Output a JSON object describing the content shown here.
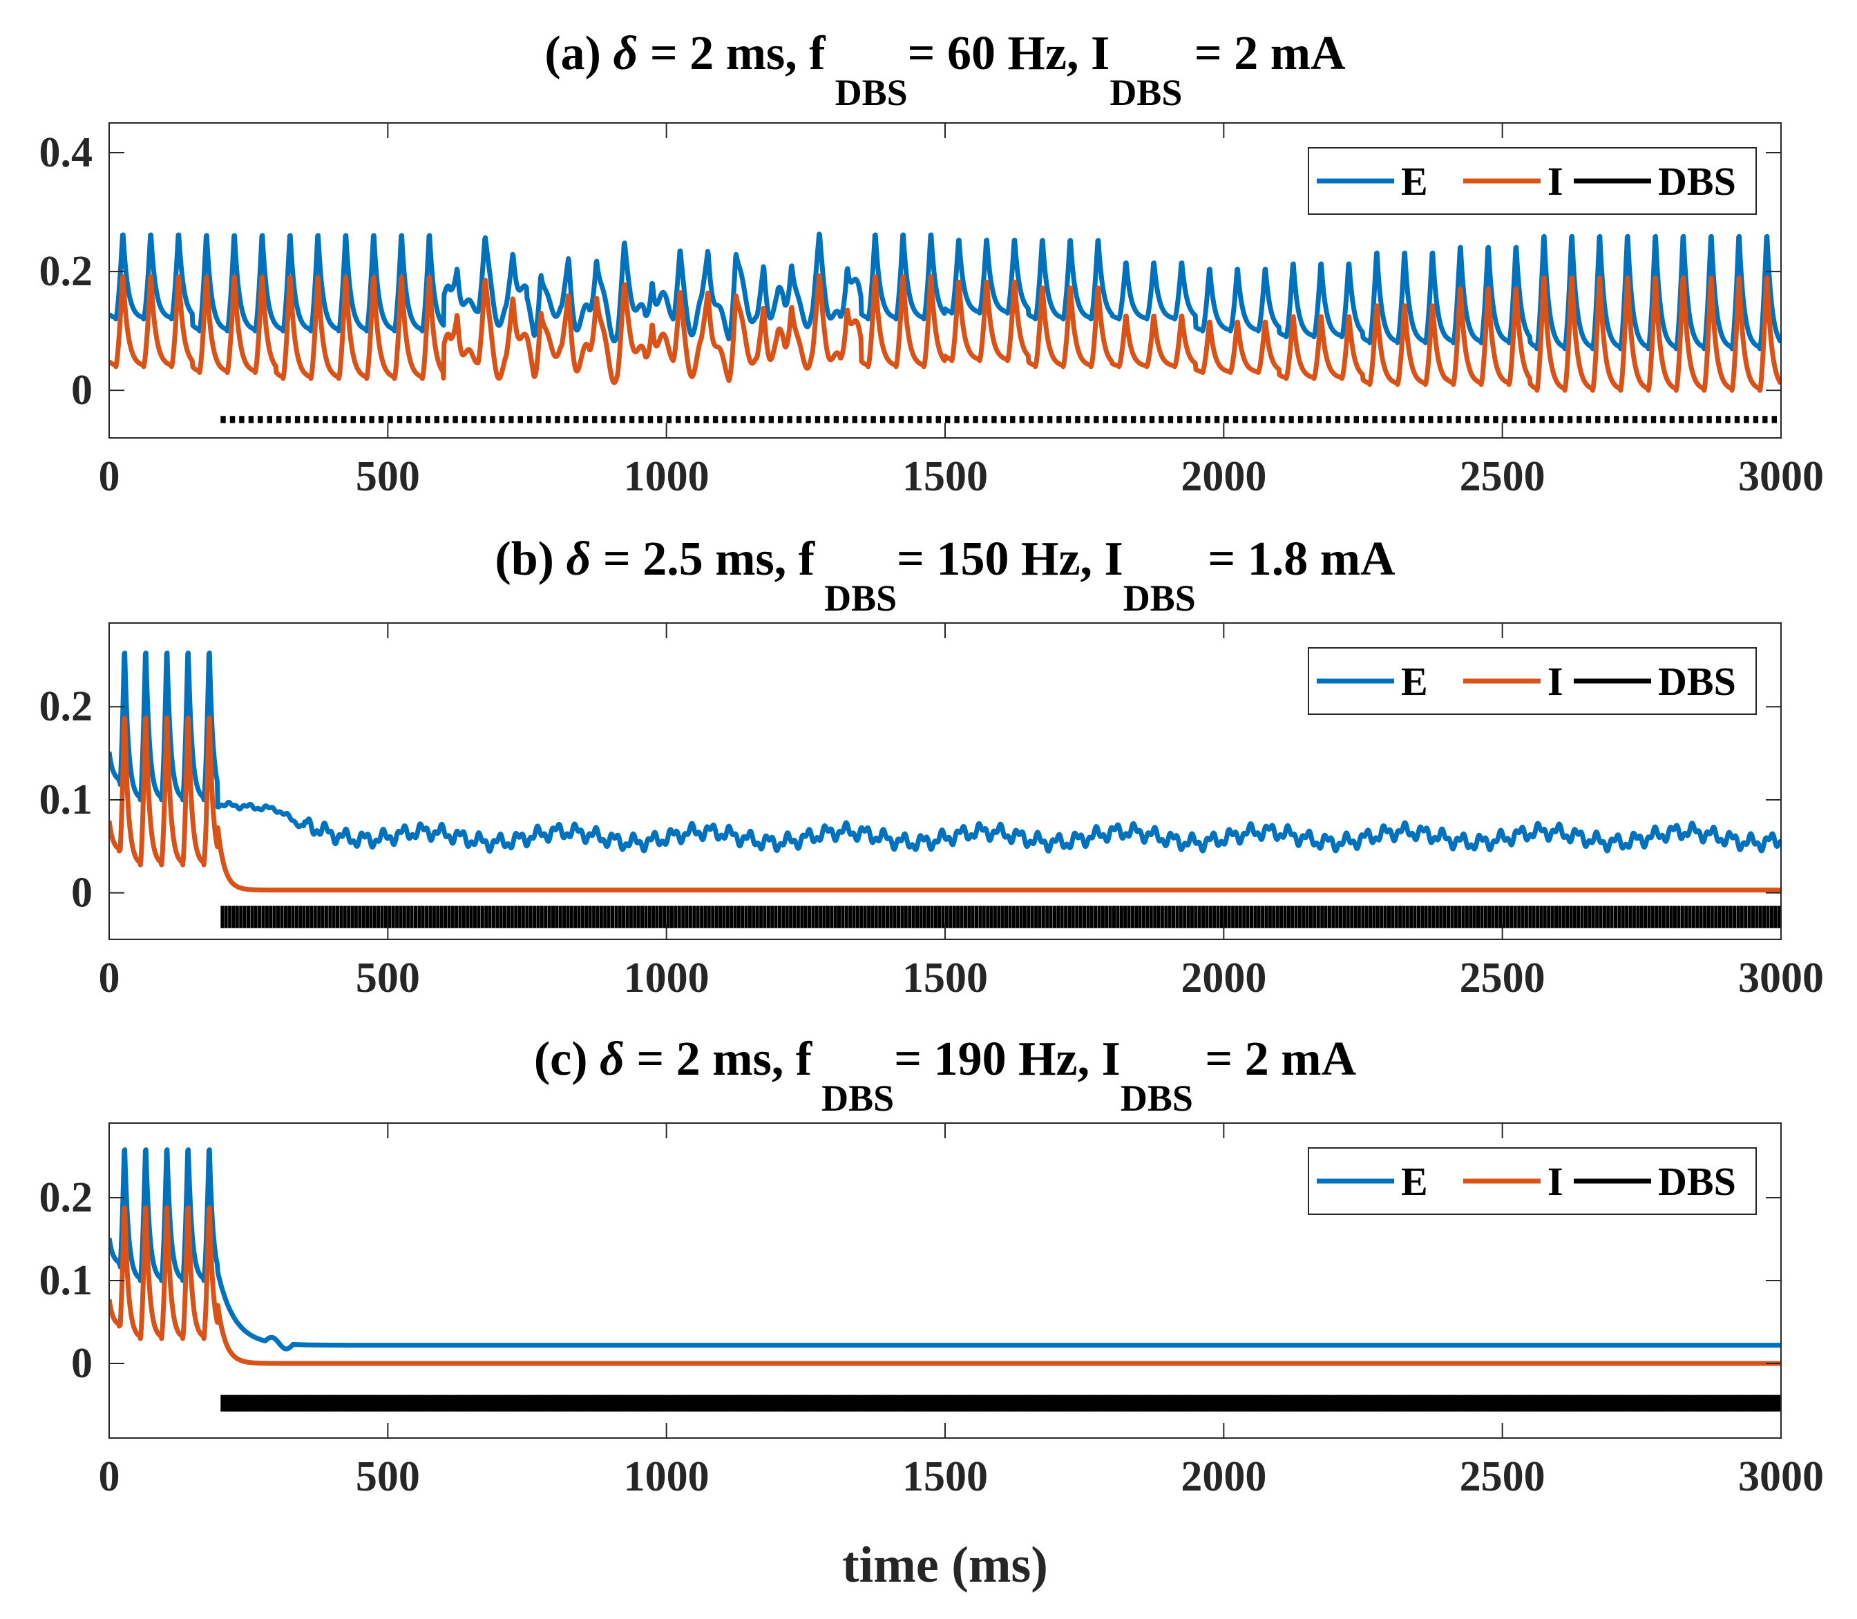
{
  "colors": {
    "E": "#0072BD",
    "I": "#D95319",
    "DBS": "#000000",
    "axis": "#262626"
  },
  "chart_data": [
    {
      "type": "line",
      "panel": "a",
      "title_parts": {
        "prefix": "(a) ",
        "delta": "δ",
        "mid": " = 2 ms, f",
        "f_sub": "DBS",
        "mid2": "= 60 Hz, I",
        "i_sub": "DBS",
        "suffix": " = 2 mA"
      },
      "xlabel": "",
      "ylabel": "",
      "xlim": [
        0,
        3000
      ],
      "ylim": [
        -0.08,
        0.45
      ],
      "xticks": [
        0,
        500,
        1000,
        1500,
        2000,
        2500,
        3000
      ],
      "yticks": [
        0,
        0.2,
        0.4
      ],
      "ytick_labels": [
        "0",
        "0.2",
        "0.4"
      ],
      "legend": [
        "E",
        "I",
        "DBS"
      ],
      "legend_position": "top-right",
      "dbs": {
        "freq_hz": 60,
        "start_ms": 200,
        "end_ms": 3000,
        "base": -0.055,
        "height": 0.012
      },
      "series": [
        {
          "name": "E",
          "description": "oscillates ~0.08-0.28 with period ~50 ms throughout",
          "period_ms": 50,
          "x": [
            0,
            20,
            30,
            45,
            70,
            95,
            120,
            145,
            170,
            200,
            250,
            300,
            400,
            500,
            600,
            700,
            800,
            900,
            1000,
            1100,
            1200,
            1300,
            1400,
            1500,
            1600,
            1700,
            1800,
            1900,
            2000,
            2500,
            3000
          ],
          "peaks": [
            0.27,
            0.27,
            0.27,
            0.27,
            0.27,
            0.26,
            0.27,
            0.27,
            0.27,
            0.27,
            0.26,
            0.26,
            0.22,
            0.21,
            0.22,
            0.24,
            0.25,
            0.27,
            0.27,
            0.27,
            0.27
          ],
          "troughs": [
            0.12,
            0.1,
            0.1,
            0.1,
            0.1,
            0.08,
            0.08,
            0.08,
            0.09,
            0.12,
            0.13,
            0.12,
            0.12,
            0.1,
            0.09,
            0.08,
            0.08,
            0.07,
            0.07,
            0.07,
            0.07
          ]
        },
        {
          "name": "I",
          "description": "oscillates ~0.01-0.20 with period ~50 ms throughout",
          "period_ms": 50,
          "peaks": [
            0.2,
            0.2,
            0.2,
            0.2,
            0.2,
            0.2,
            0.2,
            0.2,
            0.2,
            0.2,
            0.19,
            0.18,
            0.13,
            0.12,
            0.13,
            0.15,
            0.18,
            0.2,
            0.2,
            0.2,
            0.2
          ],
          "troughs": [
            0.04,
            0.03,
            0.02,
            0.02,
            0.01,
            0.01,
            0.01,
            0.01,
            0.02,
            0.04,
            0.05,
            0.04,
            0.04,
            0.03,
            0.02,
            0.01,
            0.01,
            0.0,
            0.0,
            0.0,
            0.0
          ]
        }
      ]
    },
    {
      "type": "line",
      "panel": "b",
      "title_parts": {
        "prefix": "(b) ",
        "delta": "δ",
        "mid": " = 2.5 ms, f",
        "f_sub": "DBS",
        "mid2": "= 150 Hz, I",
        "i_sub": "DBS",
        "suffix": " = 1.8 mA"
      },
      "xlabel": "",
      "ylabel": "",
      "xlim": [
        0,
        3000
      ],
      "ylim": [
        -0.05,
        0.29
      ],
      "xticks": [
        0,
        500,
        1000,
        1500,
        2000,
        2500,
        3000
      ],
      "yticks": [
        0,
        0.1,
        0.2
      ],
      "ytick_labels": [
        "0",
        "0.1",
        "0.2"
      ],
      "legend": [
        "E",
        "I",
        "DBS"
      ],
      "legend_position": "top-right",
      "dbs": {
        "freq_hz": 150,
        "start_ms": 200,
        "end_ms": 3000,
        "base": -0.038,
        "height": 0.024
      },
      "series": [
        {
          "name": "E",
          "description": "oscillation 0.10-0.27 until 200 ms, then ~0.09 decaying to ~0.06 with ripple ±0.01",
          "pre_peaks": [
            0.27,
            0.27,
            0.27,
            0.27,
            0.27
          ],
          "pre_trough": 0.1,
          "post_levels": {
            "200": 0.095,
            "300": 0.09,
            "350": 0.07,
            "500": 0.06,
            "3000": 0.06
          },
          "ripple": 0.012
        },
        {
          "name": "I",
          "description": "oscillation 0.03-0.20 until 200 ms, then near 0",
          "pre_peaks": [
            0.2,
            0.2,
            0.2,
            0.2,
            0.2
          ],
          "pre_trough": 0.03,
          "post_level": 0.003
        }
      ]
    },
    {
      "type": "line",
      "panel": "c",
      "title_parts": {
        "prefix": "(c) ",
        "delta": "δ",
        "mid": " = 2 ms, f",
        "f_sub": "DBS",
        "mid2": "= 190 Hz, I",
        "i_sub": "DBS",
        "suffix": " = 2 mA"
      },
      "xlabel": "time (ms)",
      "ylabel": "",
      "xlim": [
        0,
        3000
      ],
      "ylim": [
        -0.09,
        0.29
      ],
      "xticks": [
        0,
        500,
        1000,
        1500,
        2000,
        2500,
        3000
      ],
      "yticks": [
        0,
        0.1,
        0.2
      ],
      "ytick_labels": [
        "0",
        "0.1",
        "0.2"
      ],
      "legend": [
        "E",
        "I",
        "DBS"
      ],
      "legend_position": "top-right",
      "dbs": {
        "freq_hz": 190,
        "start_ms": 200,
        "end_ms": 3000,
        "base": -0.058,
        "height": 0.02
      },
      "series": [
        {
          "name": "E",
          "description": "oscillation 0.10-0.27 until 200 ms, then decays to steady ~0.022",
          "pre_peaks": [
            0.27,
            0.27,
            0.27,
            0.27,
            0.27
          ],
          "pre_trough": 0.1,
          "post_level": 0.022
        },
        {
          "name": "I",
          "description": "oscillation 0.03-0.20 until 200 ms, then decays to 0",
          "pre_peaks": [
            0.2,
            0.2,
            0.2,
            0.2,
            0.2
          ],
          "pre_trough": 0.03,
          "post_level": 0.0
        }
      ]
    }
  ]
}
